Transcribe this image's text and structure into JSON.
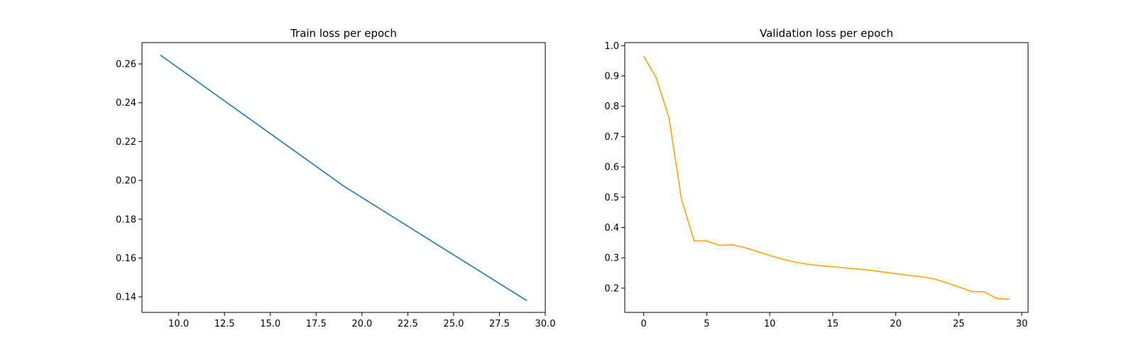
{
  "chart_data": [
    {
      "type": "line",
      "title": "Train loss per epoch",
      "xlabel": "",
      "ylabel": "",
      "xlim": [
        8.0,
        30.0
      ],
      "ylim": [
        0.132,
        0.271
      ],
      "xticks": [
        10.0,
        12.5,
        15.0,
        17.5,
        20.0,
        22.5,
        25.0,
        27.5,
        30.0
      ],
      "xtick_labels": [
        "10.0",
        "12.5",
        "15.0",
        "17.5",
        "20.0",
        "22.5",
        "25.0",
        "27.5",
        "30.0"
      ],
      "yticks": [
        0.14,
        0.16,
        0.18,
        0.2,
        0.22,
        0.24,
        0.26
      ],
      "ytick_labels": [
        "0.14",
        "0.16",
        "0.18",
        "0.20",
        "0.22",
        "0.24",
        "0.26"
      ],
      "grid": false,
      "series": [
        {
          "color": "#1f77b4",
          "x": [
            9,
            19,
            29
          ],
          "y": [
            0.2646,
            0.1971,
            0.138
          ]
        }
      ]
    },
    {
      "type": "line",
      "title": "Validation loss per epoch",
      "xlabel": "",
      "ylabel": "",
      "xlim": [
        -1.5,
        30.5
      ],
      "ylim": [
        0.12,
        1.01
      ],
      "xticks": [
        0,
        5,
        10,
        15,
        20,
        25,
        30
      ],
      "xtick_labels": [
        "0",
        "5",
        "10",
        "15",
        "20",
        "25",
        "30"
      ],
      "yticks": [
        0.2,
        0.3,
        0.4,
        0.5,
        0.6,
        0.7,
        0.8,
        0.9,
        1.0
      ],
      "ytick_labels": [
        "0.2",
        "0.3",
        "0.4",
        "0.5",
        "0.6",
        "0.7",
        "0.8",
        "0.9",
        "1.0"
      ],
      "grid": false,
      "series": [
        {
          "color": "#ffa500",
          "x": [
            0,
            1,
            2,
            3,
            4,
            5,
            6,
            7,
            8,
            9,
            10,
            11,
            12,
            13,
            14,
            15,
            16,
            17,
            18,
            19,
            20,
            21,
            22,
            23,
            24,
            25,
            26,
            27,
            28,
            29
          ],
          "y": [
            0.965,
            0.893,
            0.763,
            0.493,
            0.356,
            0.356,
            0.341,
            0.343,
            0.334,
            0.321,
            0.308,
            0.296,
            0.286,
            0.279,
            0.274,
            0.271,
            0.267,
            0.263,
            0.259,
            0.253,
            0.248,
            0.242,
            0.238,
            0.231,
            0.218,
            0.204,
            0.189,
            0.188,
            0.166,
            0.163
          ]
        }
      ]
    }
  ]
}
